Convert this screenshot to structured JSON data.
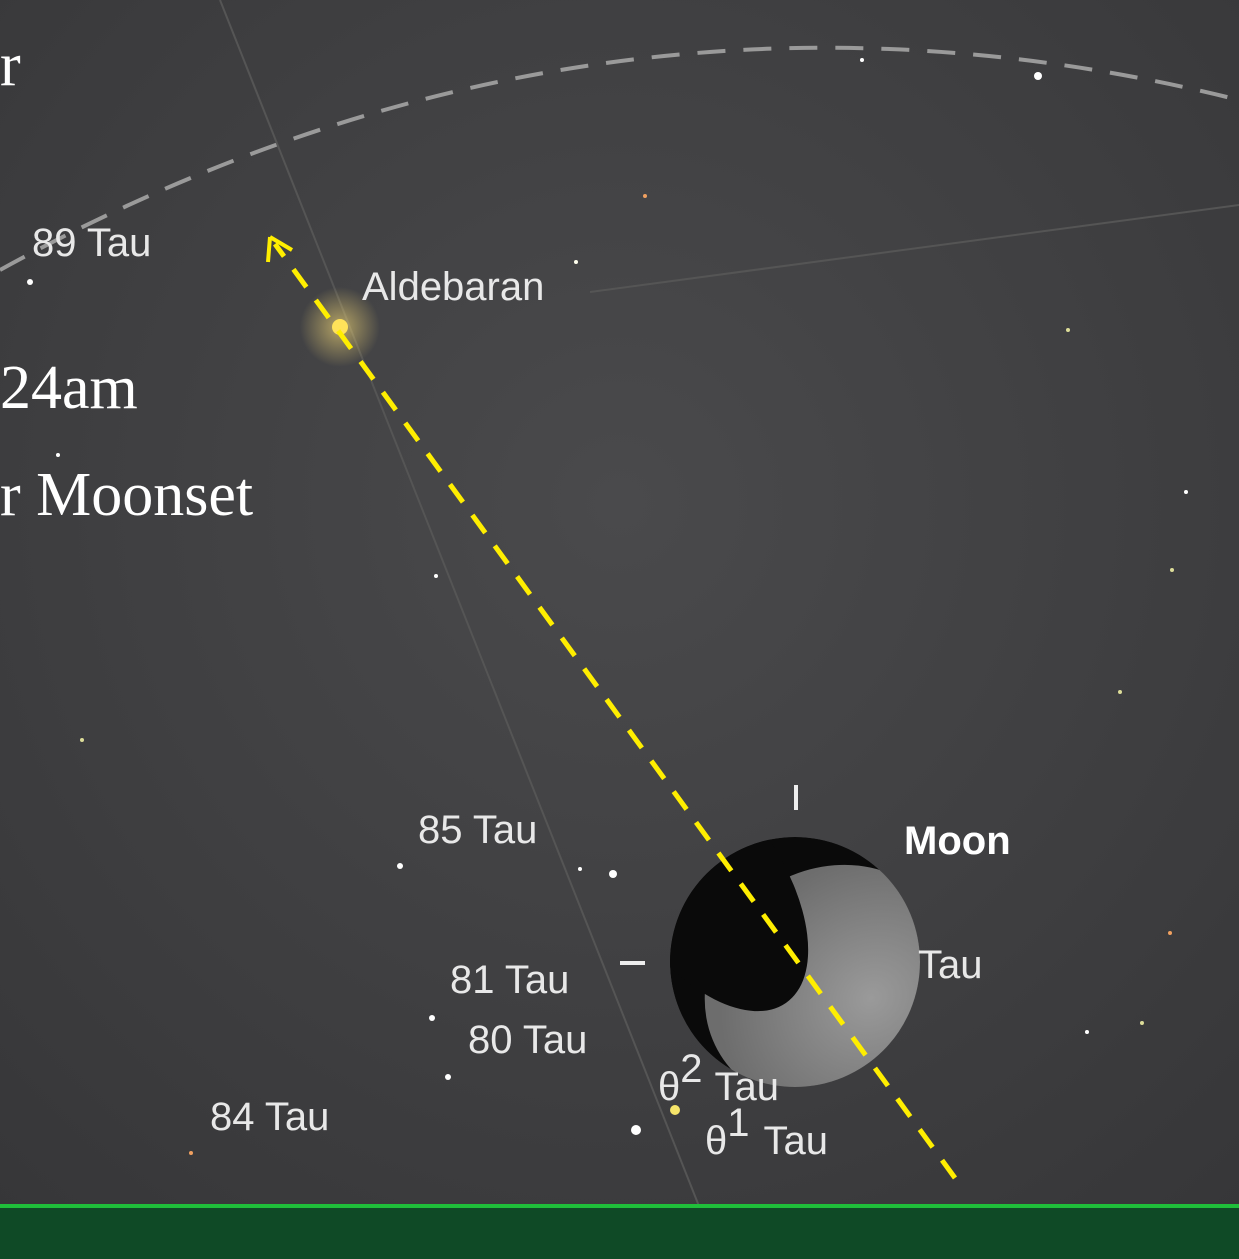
{
  "overlay_text": [
    "r",
    "24am",
    "r Moonset"
  ],
  "labels": {
    "tau89": "89 Tau",
    "aldebaran": "Aldebaran",
    "tau85": "85 Tau",
    "moon": "Moon",
    "tau_partial": "Tau",
    "tau81": "81 Tau",
    "tau80": "80 Tau",
    "tau84": "84 Tau",
    "theta2": {
      "letter": "θ",
      "index": "2",
      "rest": "Tau"
    },
    "theta1": {
      "letter": "θ",
      "index": "1",
      "rest": "Tau"
    }
  }
}
